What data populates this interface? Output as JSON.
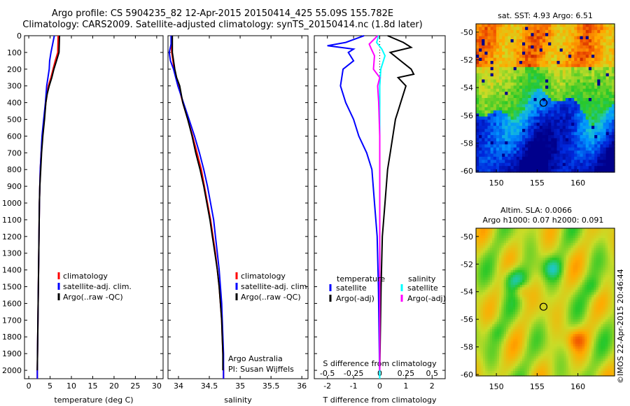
{
  "title_line1": "Argo profile: CS 5904235_82 12-Apr-2015 20150414_425 55.09S 155.782E",
  "title_line2": "Climatology: CARS2009. Satellite-adjusted climatology: synTS_20150414.nc (1.8d later)",
  "watermark": "©IMOS 22-Apr-2015 20:46:44",
  "colors": {
    "climatology": "#ff0000",
    "satellite": "#0000ff",
    "argo": "#000000",
    "sal_satellite": "#00ffff",
    "sal_argo": "#ff00ff"
  },
  "chart_data": [
    {
      "type": "line",
      "id": "temperature",
      "xlabel": "temperature (deg C)",
      "ylim": [
        2050,
        0
      ],
      "xlim": [
        -1,
        31.5
      ],
      "x_ticks": [
        0,
        5,
        10,
        15,
        20,
        25,
        30
      ],
      "y_ticks": [
        0,
        100,
        200,
        300,
        400,
        500,
        600,
        700,
        800,
        900,
        1000,
        1100,
        1200,
        1300,
        1400,
        1500,
        1600,
        1700,
        1800,
        1900,
        2000
      ],
      "legend": [
        "climatology",
        "satellite-adj. clim.",
        "Argo(..raw -QC)"
      ],
      "series": [
        {
          "name": "climatology",
          "values": [
            [
              6.9,
              0
            ],
            [
              6.8,
              100
            ],
            [
              6.2,
              150
            ],
            [
              5.7,
              200
            ],
            [
              5.2,
              250
            ],
            [
              4.6,
              300
            ],
            [
              4.0,
              400
            ],
            [
              3.6,
              500
            ],
            [
              3.2,
              600
            ],
            [
              2.9,
              700
            ],
            [
              2.7,
              800
            ],
            [
              2.6,
              900
            ],
            [
              2.5,
              1000
            ],
            [
              2.4,
              1200
            ],
            [
              2.3,
              1400
            ],
            [
              2.2,
              1600
            ],
            [
              2.1,
              1800
            ],
            [
              2.0,
              2000
            ],
            [
              2.0,
              2050
            ]
          ]
        },
        {
          "name": "satellite-adj. clim.",
          "values": [
            [
              6.0,
              0
            ],
            [
              5.6,
              50
            ],
            [
              5.2,
              100
            ],
            [
              4.9,
              150
            ],
            [
              4.8,
              200
            ],
            [
              4.5,
              250
            ],
            [
              4.2,
              300
            ],
            [
              3.9,
              400
            ],
            [
              3.5,
              500
            ],
            [
              3.1,
              600
            ],
            [
              2.9,
              700
            ],
            [
              2.7,
              800
            ],
            [
              2.6,
              900
            ],
            [
              2.5,
              1000
            ],
            [
              2.4,
              1200
            ],
            [
              2.3,
              1400
            ],
            [
              2.2,
              1600
            ],
            [
              2.1,
              1800
            ],
            [
              2.0,
              2000
            ],
            [
              2.0,
              2050
            ]
          ]
        },
        {
          "name": "Argo(..raw -QC)",
          "values": [
            [
              7.2,
              0
            ],
            [
              7.1,
              100
            ],
            [
              6.5,
              150
            ],
            [
              5.9,
              200
            ],
            [
              5.4,
              250
            ],
            [
              4.8,
              300
            ],
            [
              4.3,
              350
            ],
            [
              4.0,
              400
            ],
            [
              3.7,
              500
            ],
            [
              3.3,
              600
            ],
            [
              3.0,
              700
            ],
            [
              2.8,
              800
            ],
            [
              2.6,
              900
            ],
            [
              2.5,
              1000
            ],
            [
              2.4,
              1200
            ],
            [
              2.3,
              1400
            ],
            [
              2.2,
              1600
            ],
            [
              2.1,
              1800
            ],
            [
              2.0,
              2000
            ]
          ]
        }
      ]
    },
    {
      "type": "line",
      "id": "salinity",
      "xlabel": "salinity",
      "ylim": [
        2050,
        0
      ],
      "xlim": [
        33.83,
        36.1
      ],
      "x_ticks": [
        34,
        34.5,
        35,
        35.5,
        36
      ],
      "x_tick_labels": [
        "34",
        "34.5",
        "35",
        "35.5",
        "36"
      ],
      "legend": [
        "climatology",
        "satellite-adj. clim.",
        "Argo(..raw -QC)"
      ],
      "annotation": [
        "Argo Australia",
        "PI: Susan Wijffels"
      ],
      "series": [
        {
          "name": "climatology",
          "values": [
            [
              33.88,
              0
            ],
            [
              33.89,
              100
            ],
            [
              33.93,
              200
            ],
            [
              34.0,
              300
            ],
            [
              34.07,
              400
            ],
            [
              34.15,
              500
            ],
            [
              34.23,
              600
            ],
            [
              34.3,
              700
            ],
            [
              34.37,
              800
            ],
            [
              34.42,
              900
            ],
            [
              34.47,
              1000
            ],
            [
              34.52,
              1100
            ],
            [
              34.56,
              1200
            ],
            [
              34.6,
              1300
            ],
            [
              34.63,
              1400
            ],
            [
              34.66,
              1500
            ],
            [
              34.68,
              1600
            ],
            [
              34.7,
              1700
            ],
            [
              34.71,
              1800
            ],
            [
              34.72,
              1900
            ],
            [
              34.73,
              2000
            ],
            [
              34.73,
              2050
            ]
          ]
        },
        {
          "name": "satellite-adj. clim.",
          "values": [
            [
              33.88,
              0
            ],
            [
              33.88,
              50
            ],
            [
              33.85,
              100
            ],
            [
              33.87,
              150
            ],
            [
              33.92,
              200
            ],
            [
              33.99,
              300
            ],
            [
              34.08,
              400
            ],
            [
              34.17,
              500
            ],
            [
              34.26,
              600
            ],
            [
              34.34,
              700
            ],
            [
              34.41,
              800
            ],
            [
              34.47,
              900
            ],
            [
              34.52,
              1000
            ],
            [
              34.57,
              1100
            ],
            [
              34.6,
              1200
            ],
            [
              34.63,
              1300
            ],
            [
              34.66,
              1400
            ],
            [
              34.68,
              1500
            ],
            [
              34.7,
              1600
            ],
            [
              34.71,
              1700
            ],
            [
              34.72,
              1800
            ],
            [
              34.73,
              1900
            ],
            [
              34.73,
              2000
            ],
            [
              34.73,
              2050
            ]
          ]
        },
        {
          "name": "Argo(..raw -QC)",
          "values": [
            [
              33.9,
              0
            ],
            [
              33.9,
              100
            ],
            [
              33.94,
              200
            ],
            [
              33.97,
              250
            ],
            [
              34.02,
              300
            ],
            [
              34.07,
              400
            ],
            [
              34.15,
              500
            ],
            [
              34.22,
              600
            ],
            [
              34.28,
              700
            ],
            [
              34.35,
              800
            ],
            [
              34.41,
              900
            ],
            [
              34.46,
              1000
            ],
            [
              34.51,
              1100
            ],
            [
              34.55,
              1200
            ],
            [
              34.59,
              1300
            ],
            [
              34.63,
              1400
            ],
            [
              34.66,
              1500
            ],
            [
              34.68,
              1600
            ],
            [
              34.7,
              1700
            ],
            [
              34.71,
              1800
            ],
            [
              34.72,
              1900
            ],
            [
              34.72,
              2000
            ]
          ]
        }
      ]
    },
    {
      "type": "line",
      "id": "difference",
      "xlabel": "T difference from climatology",
      "xlabel_top": "S difference from climatology",
      "ylim": [
        2050,
        0
      ],
      "xlim": [
        -2.5,
        2.5
      ],
      "x_ticks": [
        -2,
        -1,
        0,
        1,
        2
      ],
      "top_ticks": [
        -0.5,
        -0.25,
        0,
        0.25,
        0.5
      ],
      "top_tick_labels": [
        "-0.5",
        "-0.25",
        "0",
        "0.25",
        "0.5"
      ],
      "s_scale": 0.25,
      "legend_left_title": "temperature",
      "legend_right_title": "salinity",
      "legend_left": [
        "satellite",
        "Argo(-adj)"
      ],
      "legend_right": [
        "satellite",
        "Argo(-adj)"
      ],
      "series": [
        {
          "name": "satellite",
          "values": [
            [
              -0.6,
              0
            ],
            [
              -1.3,
              40
            ],
            [
              -2.0,
              60
            ],
            [
              -1.0,
              80
            ],
            [
              -1.2,
              100
            ],
            [
              -1.0,
              150
            ],
            [
              -1.4,
              200
            ],
            [
              -1.5,
              300
            ],
            [
              -1.3,
              400
            ],
            [
              -1.0,
              500
            ],
            [
              -0.8,
              600
            ],
            [
              -0.5,
              700
            ],
            [
              -0.3,
              800
            ],
            [
              -0.2,
              1000
            ],
            [
              -0.1,
              1200
            ],
            [
              -0.05,
              1500
            ],
            [
              0,
              2050
            ]
          ]
        },
        {
          "name": "Argo(-adj)",
          "values": [
            [
              0.3,
              0
            ],
            [
              0.9,
              40
            ],
            [
              1.2,
              70
            ],
            [
              0.4,
              100
            ],
            [
              0.8,
              150
            ],
            [
              1.2,
              200
            ],
            [
              1.3,
              230
            ],
            [
              0.7,
              250
            ],
            [
              1.0,
              300
            ],
            [
              0.8,
              400
            ],
            [
              0.7,
              450
            ],
            [
              0.6,
              500
            ],
            [
              0.5,
              600
            ],
            [
              0.4,
              700
            ],
            [
              0.3,
              800
            ],
            [
              0.2,
              1000
            ],
            [
              0.1,
              1200
            ],
            [
              0.05,
              1500
            ],
            [
              0,
              2000
            ]
          ]
        },
        {
          "name": "satellite",
          "values": [
            [
              -0.01,
              0
            ],
            [
              -0.03,
              40
            ],
            [
              0.02,
              80
            ],
            [
              0.05,
              120
            ],
            [
              0.01,
              200
            ],
            [
              0.0,
              300
            ],
            [
              0.0,
              400
            ],
            [
              0.0,
              600
            ],
            [
              0.0,
              1000
            ],
            [
              0.0,
              2050
            ]
          ]
        },
        {
          "name": "Argo(-adj)",
          "values": [
            [
              -0.02,
              0
            ],
            [
              -0.1,
              50
            ],
            [
              -0.08,
              80
            ],
            [
              -0.05,
              120
            ],
            [
              -0.06,
              200
            ],
            [
              0.0,
              250
            ],
            [
              -0.02,
              300
            ],
            [
              -0.01,
              400
            ],
            [
              0.0,
              600
            ],
            [
              0.0,
              1000
            ],
            [
              0.0,
              2000
            ]
          ]
        }
      ]
    },
    {
      "type": "heatmap",
      "id": "sst_map",
      "title": "sat. SST: 4.93 Argo: 6.51",
      "xlim": [
        147.5,
        164.5
      ],
      "ylim": [
        -60.1,
        -49.4
      ],
      "x_ticks": [
        150,
        155,
        160
      ],
      "y_ticks": [
        -50,
        -52,
        -54,
        -56,
        -58,
        -60
      ],
      "marker": [
        155.782,
        -55.09
      ]
    },
    {
      "type": "heatmap",
      "id": "sla_map",
      "title": "Altim. SLA: 0.0066",
      "title_line2": "Argo h1000: 0.07 h2000: 0.091",
      "xlim": [
        147.5,
        164.5
      ],
      "ylim": [
        -60.1,
        -49.4
      ],
      "x_ticks": [
        150,
        155,
        160
      ],
      "y_ticks": [
        -50,
        -52,
        -54,
        -56,
        -58,
        -60
      ],
      "marker": [
        155.782,
        -55.09
      ]
    }
  ]
}
